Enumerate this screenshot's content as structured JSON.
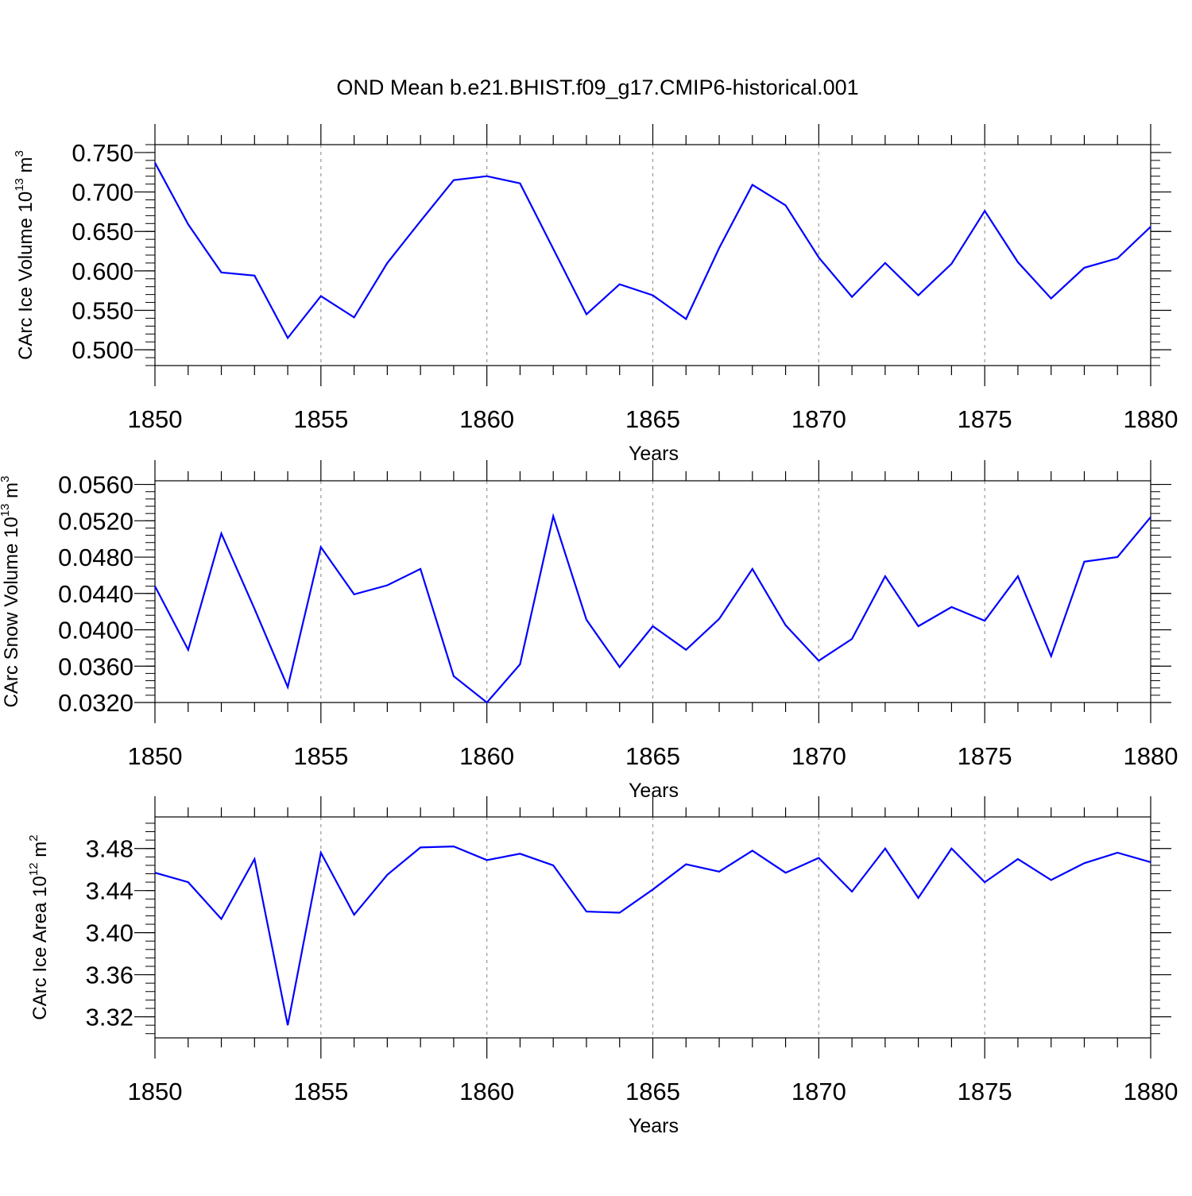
{
  "title": "OND Mean b.e21.BHIST.f09_g17.CMIP6-historical.001",
  "chart_data": [
    {
      "type": "line",
      "title": "",
      "xlabel": "Years",
      "ylabel_text": "CArc Ice Volume 10",
      "ylabel_exp": "13",
      "ylabel_unit": "m",
      "ylabel_unit_exp": "3",
      "xlim": [
        1850,
        1880
      ],
      "ylim": [
        0.48,
        0.76
      ],
      "xticks": [
        1850,
        1855,
        1860,
        1865,
        1870,
        1875,
        1880
      ],
      "yticks": [
        0.5,
        0.55,
        0.6,
        0.65,
        0.7,
        0.75
      ],
      "ytick_labels": [
        "0.500",
        "0.550",
        "0.600",
        "0.650",
        "0.700",
        "0.750"
      ],
      "grid": "vertical dashed at major x ticks",
      "line_color": "#0000ff",
      "x": [
        1850,
        1851,
        1852,
        1853,
        1854,
        1855,
        1856,
        1857,
        1858,
        1859,
        1860,
        1861,
        1862,
        1863,
        1864,
        1865,
        1866,
        1867,
        1868,
        1869,
        1870,
        1871,
        1872,
        1873,
        1874,
        1875,
        1876,
        1877,
        1878,
        1879,
        1880
      ],
      "values": [
        0.737,
        0.659,
        0.598,
        0.594,
        0.515,
        0.568,
        0.541,
        0.61,
        0.663,
        0.715,
        0.72,
        0.711,
        0.628,
        0.545,
        0.583,
        0.569,
        0.539,
        0.629,
        0.709,
        0.683,
        0.617,
        0.567,
        0.61,
        0.569,
        0.609,
        0.676,
        0.611,
        0.565,
        0.604,
        0.616,
        0.656
      ]
    },
    {
      "type": "line",
      "title": "",
      "xlabel": "Years",
      "ylabel_text": "CArc Snow Volume 10",
      "ylabel_exp": "13",
      "ylabel_unit": "m",
      "ylabel_unit_exp": "3",
      "xlim": [
        1850,
        1880
      ],
      "ylim": [
        0.032,
        0.0564
      ],
      "xticks": [
        1850,
        1855,
        1860,
        1865,
        1870,
        1875,
        1880
      ],
      "yticks": [
        0.032,
        0.036,
        0.04,
        0.044,
        0.048,
        0.052,
        0.056
      ],
      "ytick_labels": [
        "0.0320",
        "0.0360",
        "0.0400",
        "0.0440",
        "0.0480",
        "0.0520",
        "0.0560"
      ],
      "grid": "vertical dashed at major x ticks",
      "line_color": "#0000ff",
      "x": [
        1850,
        1851,
        1852,
        1853,
        1854,
        1855,
        1856,
        1857,
        1858,
        1859,
        1860,
        1861,
        1862,
        1863,
        1864,
        1865,
        1866,
        1867,
        1868,
        1869,
        1870,
        1871,
        1872,
        1873,
        1874,
        1875,
        1876,
        1877,
        1878,
        1879,
        1880
      ],
      "values": [
        0.0448,
        0.0378,
        0.0506,
        0.0423,
        0.0337,
        0.0491,
        0.0439,
        0.0449,
        0.0467,
        0.0349,
        0.032,
        0.0362,
        0.0525,
        0.0411,
        0.0359,
        0.0404,
        0.0378,
        0.0412,
        0.0467,
        0.0405,
        0.0366,
        0.039,
        0.0459,
        0.0404,
        0.0425,
        0.041,
        0.0459,
        0.0371,
        0.0475,
        0.048,
        0.0524
      ]
    },
    {
      "type": "line",
      "title": "",
      "xlabel": "Years",
      "ylabel_text": "CArc Ice Area 10",
      "ylabel_exp": "12",
      "ylabel_unit": "m",
      "ylabel_unit_exp": "2",
      "xlim": [
        1850,
        1880
      ],
      "ylim": [
        3.3,
        3.51
      ],
      "xticks": [
        1850,
        1855,
        1860,
        1865,
        1870,
        1875,
        1880
      ],
      "yticks": [
        3.32,
        3.36,
        3.4,
        3.44,
        3.48
      ],
      "ytick_labels": [
        "3.32",
        "3.36",
        "3.40",
        "3.44",
        "3.48"
      ],
      "grid": "vertical dashed at major x ticks",
      "line_color": "#0000ff",
      "x": [
        1850,
        1851,
        1852,
        1853,
        1854,
        1855,
        1856,
        1857,
        1858,
        1859,
        1860,
        1861,
        1862,
        1863,
        1864,
        1865,
        1866,
        1867,
        1868,
        1869,
        1870,
        1871,
        1872,
        1873,
        1874,
        1875,
        1876,
        1877,
        1878,
        1879,
        1880
      ],
      "values": [
        3.457,
        3.448,
        3.413,
        3.47,
        3.312,
        3.476,
        3.417,
        3.455,
        3.481,
        3.482,
        3.469,
        3.475,
        3.464,
        3.42,
        3.419,
        3.441,
        3.465,
        3.458,
        3.478,
        3.457,
        3.471,
        3.439,
        3.48,
        3.433,
        3.48,
        3.448,
        3.47,
        3.45,
        3.466,
        3.476,
        3.467
      ]
    }
  ]
}
